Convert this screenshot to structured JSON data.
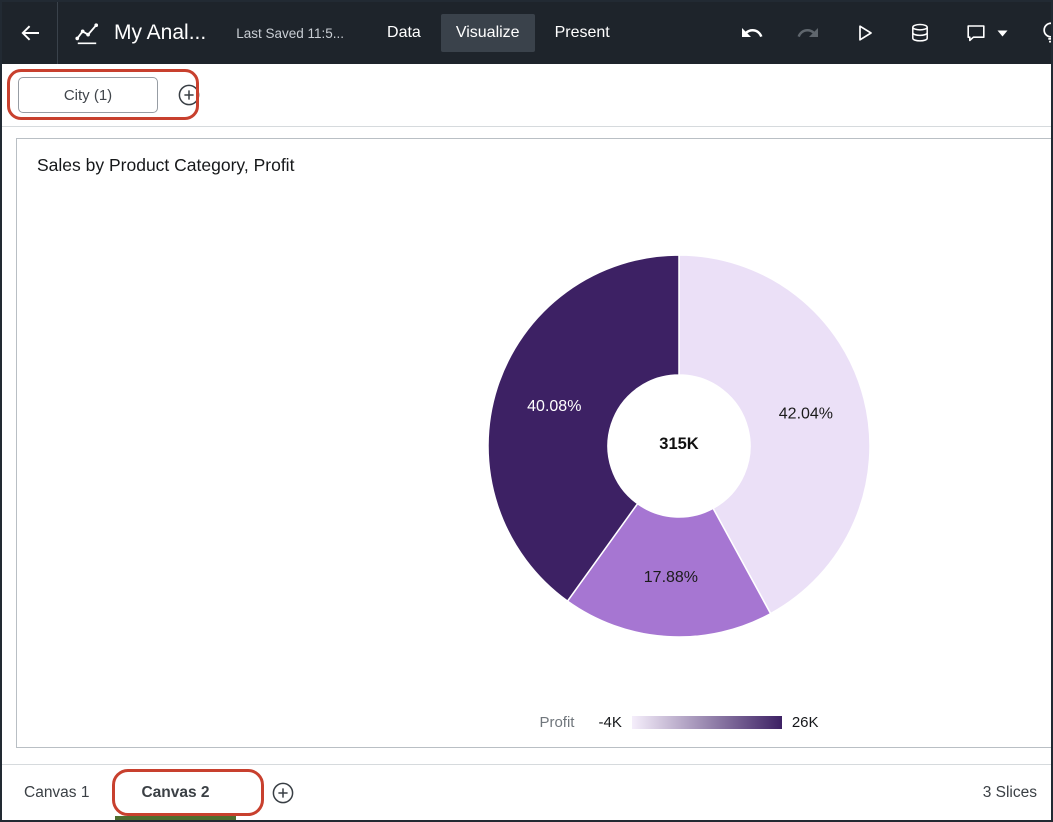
{
  "header": {
    "title": "My Anal...",
    "last_saved": "Last Saved 11:5...",
    "tabs": [
      {
        "label": "Data",
        "active": false
      },
      {
        "label": "Visualize",
        "active": true
      },
      {
        "label": "Present",
        "active": false
      }
    ]
  },
  "icons": [
    "back-arrow",
    "analytics-logo",
    "undo",
    "redo",
    "run",
    "refresh-data",
    "comments",
    "dropdown-caret",
    "lightbulb",
    "add-filter-plus",
    "add-canvas-plus"
  ],
  "colors": {
    "header_bg": "#1e242b",
    "annotation_red": "#c8402e",
    "active_canvas_underline": "#4f6d2f"
  },
  "filter_bar": {
    "filters": [
      {
        "label": "City (1)"
      }
    ]
  },
  "chart_data": {
    "type": "pie",
    "title": "Sales by Product Category, Profit",
    "center_total": "315K",
    "measure": "Profit",
    "slices": [
      {
        "label": "42.04%",
        "value": 42.04,
        "color": "#ebe0f7"
      },
      {
        "label": "17.88%",
        "value": 17.88,
        "color": "#a676d2"
      },
      {
        "label": "40.08%",
        "value": 40.08,
        "color": "#3d2164"
      }
    ],
    "legend": {
      "label": "Profit",
      "min": "-4K",
      "max": "26K",
      "gradient": [
        "#f5eefb",
        "#3d2164"
      ],
      "position": "bottom"
    }
  },
  "bottom_bar": {
    "tabs": [
      {
        "label": "Canvas 1",
        "active": false
      },
      {
        "label": "Canvas 2",
        "active": true
      }
    ],
    "status": "3 Slices"
  }
}
